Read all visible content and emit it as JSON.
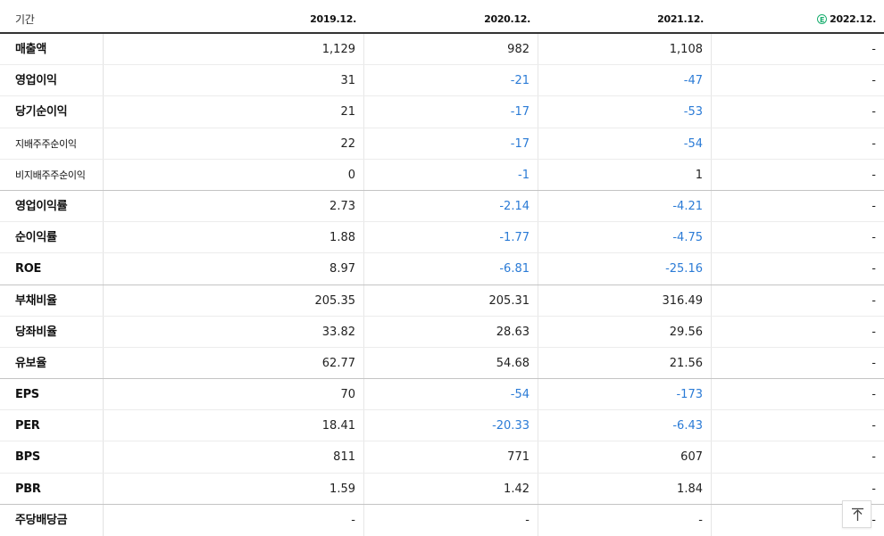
{
  "header": {
    "period_label": "기간",
    "years": [
      "2019.12.",
      "2020.12.",
      "2021.12.",
      "2022.12."
    ],
    "estimate_badge": "E"
  },
  "rows": [
    {
      "label": "매출액",
      "values": [
        "1,129",
        "982",
        "1,108",
        "-"
      ],
      "neg": [
        false,
        false,
        false,
        false
      ]
    },
    {
      "label": "영업이익",
      "values": [
        "31",
        "-21",
        "-47",
        "-"
      ],
      "neg": [
        false,
        true,
        true,
        false
      ]
    },
    {
      "label": "당기순이익",
      "values": [
        "21",
        "-17",
        "-53",
        "-"
      ],
      "neg": [
        false,
        true,
        true,
        false
      ]
    },
    {
      "label": "지배주주순이익",
      "values": [
        "22",
        "-17",
        "-54",
        "-"
      ],
      "neg": [
        false,
        true,
        true,
        false
      ]
    },
    {
      "label": "비지배주주순이익",
      "values": [
        "0",
        "-1",
        "1",
        "-"
      ],
      "neg": [
        false,
        true,
        false,
        false
      ]
    },
    {
      "label": "영업이익률",
      "values": [
        "2.73",
        "-2.14",
        "-4.21",
        "-"
      ],
      "neg": [
        false,
        true,
        true,
        false
      ]
    },
    {
      "label": "순이익률",
      "values": [
        "1.88",
        "-1.77",
        "-4.75",
        "-"
      ],
      "neg": [
        false,
        true,
        true,
        false
      ]
    },
    {
      "label": "ROE",
      "values": [
        "8.97",
        "-6.81",
        "-25.16",
        "-"
      ],
      "neg": [
        false,
        true,
        true,
        false
      ]
    },
    {
      "label": "부채비율",
      "values": [
        "205.35",
        "205.31",
        "316.49",
        "-"
      ],
      "neg": [
        false,
        false,
        false,
        false
      ]
    },
    {
      "label": "당좌비율",
      "values": [
        "33.82",
        "28.63",
        "29.56",
        "-"
      ],
      "neg": [
        false,
        false,
        false,
        false
      ]
    },
    {
      "label": "유보율",
      "values": [
        "62.77",
        "54.68",
        "21.56",
        "-"
      ],
      "neg": [
        false,
        false,
        false,
        false
      ]
    },
    {
      "label": "EPS",
      "values": [
        "70",
        "-54",
        "-173",
        "-"
      ],
      "neg": [
        false,
        true,
        true,
        false
      ]
    },
    {
      "label": "PER",
      "values": [
        "18.41",
        "-20.33",
        "-6.43",
        "-"
      ],
      "neg": [
        false,
        true,
        true,
        false
      ]
    },
    {
      "label": "BPS",
      "values": [
        "811",
        "771",
        "607",
        "-"
      ],
      "neg": [
        false,
        false,
        false,
        false
      ]
    },
    {
      "label": "PBR",
      "values": [
        "1.59",
        "1.42",
        "1.84",
        "-"
      ],
      "neg": [
        false,
        false,
        false,
        false
      ]
    },
    {
      "label": "주당배당금",
      "values": [
        "-",
        "-",
        "-",
        "-"
      ],
      "neg": [
        false,
        false,
        false,
        false
      ]
    }
  ],
  "colors": {
    "negative": "#2b7bd6",
    "estimate_badge": "#1aae6f"
  },
  "scroll_top_icon": "arrow-up-icon"
}
